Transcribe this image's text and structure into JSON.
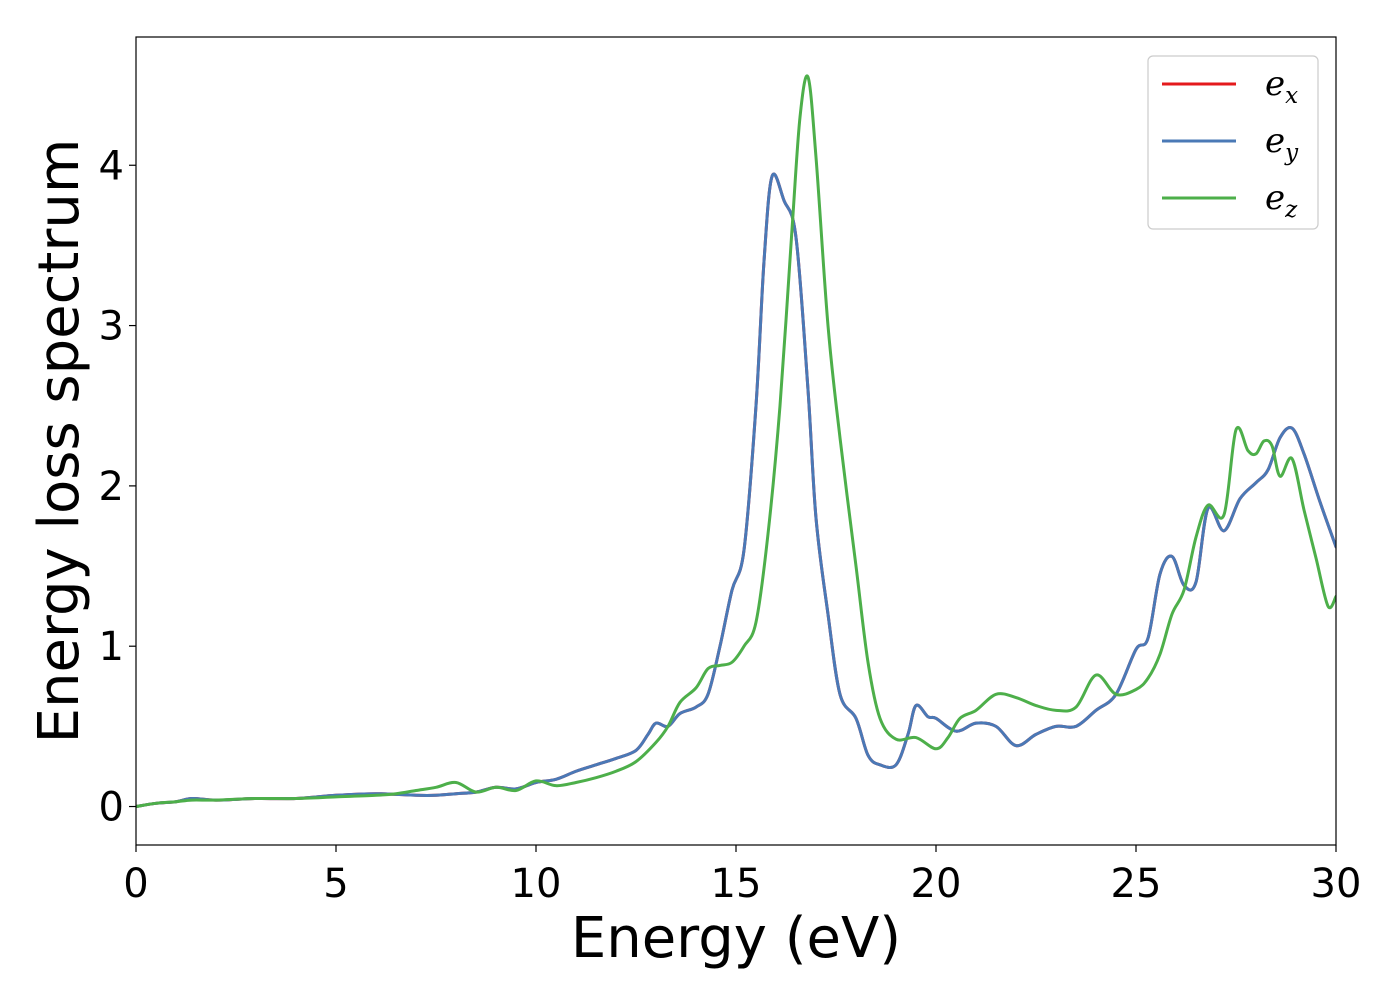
{
  "chart_data": {
    "type": "line",
    "title": "",
    "xlabel": "Energy (eV)",
    "ylabel": "Energy loss spectrum",
    "xlim": [
      0,
      30
    ],
    "ylim": [
      -0.24,
      4.8
    ],
    "xticks": [
      "0",
      "5",
      "10",
      "15",
      "20",
      "25",
      "30"
    ],
    "yticks": [
      "0",
      "1",
      "2",
      "3",
      "4"
    ],
    "grid": false,
    "legend_position": "top-right",
    "series": [
      {
        "name": "e_x",
        "label_base": "e",
        "label_sub": "x",
        "color": "#e41a1c",
        "x": [
          0,
          0.5,
          1,
          1.4,
          2,
          3,
          4,
          5,
          6,
          7,
          7.5,
          8,
          8.5,
          9,
          9.5,
          10,
          10.5,
          11,
          11.5,
          12,
          12.5,
          12.8,
          13,
          13.3,
          13.6,
          14,
          14.3,
          14.6,
          14.9,
          15.2,
          15.5,
          15.7,
          15.9,
          16.2,
          16.5,
          16.8,
          17,
          17.3,
          17.6,
          18,
          18.3,
          18.6,
          19,
          19.3,
          19.5,
          19.8,
          20,
          20.5,
          21,
          21.5,
          22,
          22.5,
          23,
          23.5,
          24,
          24.5,
          25,
          25.3,
          25.6,
          25.9,
          26.2,
          26.5,
          26.8,
          27.2,
          27.6,
          28,
          28.3,
          28.6,
          28.9,
          29.2,
          29.6,
          30
        ],
        "values": [
          0,
          0.02,
          0.03,
          0.05,
          0.04,
          0.05,
          0.05,
          0.07,
          0.08,
          0.07,
          0.07,
          0.08,
          0.09,
          0.12,
          0.11,
          0.15,
          0.17,
          0.22,
          0.26,
          0.3,
          0.35,
          0.45,
          0.52,
          0.5,
          0.58,
          0.62,
          0.7,
          1.0,
          1.35,
          1.6,
          2.5,
          3.4,
          3.93,
          3.78,
          3.55,
          2.6,
          1.8,
          1.2,
          0.7,
          0.55,
          0.32,
          0.26,
          0.26,
          0.45,
          0.63,
          0.56,
          0.55,
          0.47,
          0.52,
          0.5,
          0.38,
          0.45,
          0.5,
          0.5,
          0.6,
          0.7,
          0.98,
          1.05,
          1.45,
          1.56,
          1.38,
          1.4,
          1.86,
          1.72,
          1.92,
          2.02,
          2.1,
          2.3,
          2.36,
          2.2,
          1.9,
          1.62
        ]
      },
      {
        "name": "e_y",
        "label_base": "e",
        "label_sub": "y",
        "color": "#4a79b6",
        "x": [
          0,
          0.5,
          1,
          1.4,
          2,
          3,
          4,
          5,
          6,
          7,
          7.5,
          8,
          8.5,
          9,
          9.5,
          10,
          10.5,
          11,
          11.5,
          12,
          12.5,
          12.8,
          13,
          13.3,
          13.6,
          14,
          14.3,
          14.6,
          14.9,
          15.2,
          15.5,
          15.7,
          15.9,
          16.2,
          16.5,
          16.8,
          17,
          17.3,
          17.6,
          18,
          18.3,
          18.6,
          19,
          19.3,
          19.5,
          19.8,
          20,
          20.5,
          21,
          21.5,
          22,
          22.5,
          23,
          23.5,
          24,
          24.5,
          25,
          25.3,
          25.6,
          25.9,
          26.2,
          26.5,
          26.8,
          27.2,
          27.6,
          28,
          28.3,
          28.6,
          28.9,
          29.2,
          29.6,
          30
        ],
        "values": [
          0,
          0.02,
          0.03,
          0.05,
          0.04,
          0.05,
          0.05,
          0.07,
          0.08,
          0.07,
          0.07,
          0.08,
          0.09,
          0.12,
          0.11,
          0.15,
          0.17,
          0.22,
          0.26,
          0.3,
          0.35,
          0.45,
          0.52,
          0.5,
          0.58,
          0.62,
          0.7,
          1.0,
          1.35,
          1.6,
          2.5,
          3.4,
          3.93,
          3.78,
          3.55,
          2.6,
          1.8,
          1.2,
          0.7,
          0.55,
          0.32,
          0.26,
          0.26,
          0.45,
          0.63,
          0.56,
          0.55,
          0.47,
          0.52,
          0.5,
          0.38,
          0.45,
          0.5,
          0.5,
          0.6,
          0.7,
          0.98,
          1.05,
          1.45,
          1.56,
          1.38,
          1.4,
          1.86,
          1.72,
          1.92,
          2.02,
          2.1,
          2.3,
          2.36,
          2.2,
          1.9,
          1.62
        ]
      },
      {
        "name": "e_z",
        "label_base": "e",
        "label_sub": "z",
        "color": "#4daf4a",
        "x": [
          0,
          0.5,
          1,
          1.4,
          2,
          3,
          4,
          5,
          6,
          6.5,
          7,
          7.5,
          8,
          8.5,
          9,
          9.5,
          10,
          10.5,
          11,
          11.5,
          12,
          12.5,
          13,
          13.3,
          13.6,
          14,
          14.3,
          14.6,
          14.9,
          15.2,
          15.5,
          15.8,
          16.1,
          16.4,
          16.6,
          16.8,
          17,
          17.3,
          17.6,
          18,
          18.3,
          18.6,
          19,
          19.5,
          20,
          20.3,
          20.6,
          21,
          21.5,
          22,
          22.5,
          23,
          23.5,
          24,
          24.5,
          25,
          25.3,
          25.6,
          25.9,
          26.2,
          26.5,
          26.8,
          27.2,
          27.5,
          27.8,
          28,
          28.2,
          28.4,
          28.6,
          28.9,
          29.2,
          29.5,
          29.8,
          30
        ],
        "values": [
          0,
          0.02,
          0.03,
          0.04,
          0.04,
          0.05,
          0.05,
          0.06,
          0.07,
          0.08,
          0.1,
          0.12,
          0.15,
          0.09,
          0.12,
          0.1,
          0.16,
          0.13,
          0.15,
          0.18,
          0.22,
          0.28,
          0.4,
          0.5,
          0.65,
          0.74,
          0.86,
          0.88,
          0.9,
          1.0,
          1.15,
          1.7,
          2.5,
          3.6,
          4.3,
          4.55,
          4.05,
          3.0,
          2.3,
          1.5,
          0.9,
          0.55,
          0.42,
          0.43,
          0.36,
          0.43,
          0.55,
          0.6,
          0.7,
          0.68,
          0.63,
          0.6,
          0.62,
          0.82,
          0.7,
          0.73,
          0.8,
          0.95,
          1.2,
          1.35,
          1.68,
          1.88,
          1.82,
          2.35,
          2.22,
          2.2,
          2.28,
          2.25,
          2.06,
          2.17,
          1.85,
          1.55,
          1.25,
          1.31
        ]
      }
    ]
  }
}
